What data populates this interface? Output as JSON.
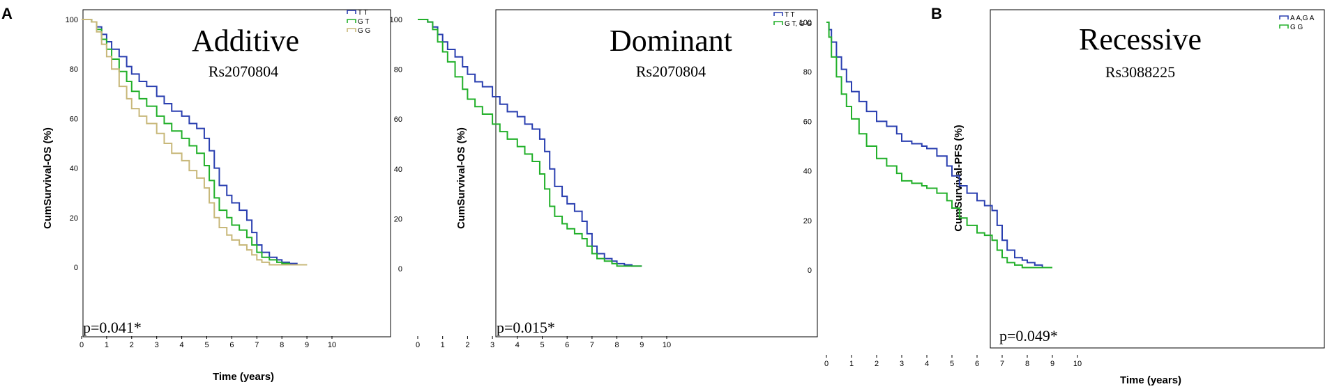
{
  "chart_data": [
    {
      "type": "line",
      "panel_label": "A",
      "title": "Additive",
      "subtitle": "Rs2070804",
      "xlabel": "Time (years)",
      "ylabel": "CumSurvival-OS (%)",
      "annotation": "p=0.041*",
      "xlim": [
        0,
        10
      ],
      "ylim": [
        0,
        100
      ],
      "xticks": [
        "0",
        "1",
        "2",
        "3",
        "4",
        "5",
        "6",
        "7",
        "8",
        "9",
        "10"
      ],
      "yticks": [
        "0",
        "20",
        "40",
        "60",
        "80",
        "100"
      ],
      "legend_position": "top-right",
      "series": [
        {
          "name": "T T",
          "color": "#2a3fb0",
          "x": [
            0,
            0.2,
            0.4,
            0.6,
            0.8,
            1,
            1.2,
            1.5,
            1.8,
            2,
            2.3,
            2.6,
            3,
            3.3,
            3.6,
            4,
            4.3,
            4.6,
            4.9,
            5.1,
            5.3,
            5.5,
            5.8,
            6,
            6.3,
            6.6,
            6.8,
            7,
            7.2,
            7.5,
            7.8,
            8,
            8.3,
            8.6,
            9
          ],
          "y": [
            100,
            100,
            99,
            97,
            94,
            91,
            88,
            85,
            81,
            78,
            75,
            73,
            69,
            66,
            63,
            61,
            58,
            56,
            52,
            47,
            40,
            33,
            29,
            26,
            23,
            19,
            14,
            9,
            6,
            4,
            3,
            2,
            1.5,
            1,
            1
          ]
        },
        {
          "name": "G T",
          "color": "#22b02a",
          "x": [
            0,
            0.2,
            0.4,
            0.6,
            0.8,
            1,
            1.2,
            1.5,
            1.8,
            2,
            2.3,
            2.6,
            3,
            3.3,
            3.6,
            4,
            4.3,
            4.6,
            4.9,
            5.1,
            5.3,
            5.5,
            5.8,
            6,
            6.3,
            6.6,
            6.8,
            7,
            7.2,
            7.5,
            7.8,
            8,
            8.3,
            8.6,
            9
          ],
          "y": [
            100,
            100,
            99,
            96,
            92,
            88,
            84,
            79,
            75,
            71,
            68,
            65,
            61,
            58,
            55,
            52,
            49,
            46,
            41,
            35,
            28,
            23,
            20,
            17,
            15,
            12,
            9,
            6,
            4,
            3,
            2,
            1.5,
            1,
            1,
            1
          ]
        },
        {
          "name": "G G",
          "color": "#c8b87a",
          "x": [
            0,
            0.2,
            0.4,
            0.6,
            0.8,
            1,
            1.2,
            1.5,
            1.8,
            2,
            2.3,
            2.6,
            3,
            3.3,
            3.6,
            4,
            4.3,
            4.6,
            4.9,
            5.1,
            5.3,
            5.5,
            5.8,
            6,
            6.3,
            6.6,
            6.8,
            7,
            7.2,
            7.5,
            7.8,
            8,
            8.3,
            8.6,
            9
          ],
          "y": [
            100,
            100,
            99,
            95,
            90,
            85,
            80,
            73,
            68,
            64,
            61,
            58,
            54,
            50,
            46,
            43,
            39,
            36,
            32,
            26,
            20,
            16,
            13,
            11,
            9,
            7,
            5,
            3,
            2,
            1,
            1,
            1,
            1,
            1,
            1
          ]
        }
      ]
    },
    {
      "type": "line",
      "title": "Dominant",
      "subtitle": "Rs2070804",
      "xlabel": "",
      "ylabel": "CumSurvival-OS (%)",
      "annotation": "p=0.015*",
      "xlim": [
        0,
        10
      ],
      "ylim": [
        0,
        100
      ],
      "xticks": [
        "0",
        "1",
        "2",
        "3",
        "4",
        "5",
        "6",
        "7",
        "8",
        "9",
        "10"
      ],
      "yticks": [
        "0",
        "20",
        "40",
        "60",
        "80",
        "100"
      ],
      "legend_position": "top-right",
      "series": [
        {
          "name": "T T",
          "color": "#2a3fb0",
          "x": [
            0,
            0.2,
            0.4,
            0.6,
            0.8,
            1,
            1.2,
            1.5,
            1.8,
            2,
            2.3,
            2.6,
            3,
            3.3,
            3.6,
            4,
            4.3,
            4.6,
            4.9,
            5.1,
            5.3,
            5.5,
            5.8,
            6,
            6.3,
            6.6,
            6.8,
            7,
            7.2,
            7.5,
            7.8,
            8,
            8.3,
            8.6,
            9
          ],
          "y": [
            100,
            100,
            99,
            97,
            94,
            91,
            88,
            85,
            81,
            78,
            75,
            73,
            69,
            66,
            63,
            61,
            58,
            56,
            52,
            47,
            40,
            33,
            29,
            26,
            23,
            19,
            14,
            9,
            6,
            4,
            3,
            2,
            1.5,
            1,
            1
          ]
        },
        {
          "name": "G T, G G",
          "color": "#22b02a",
          "x": [
            0,
            0.2,
            0.4,
            0.6,
            0.8,
            1,
            1.2,
            1.5,
            1.8,
            2,
            2.3,
            2.6,
            3,
            3.3,
            3.6,
            4,
            4.3,
            4.6,
            4.9,
            5.1,
            5.3,
            5.5,
            5.8,
            6,
            6.3,
            6.6,
            6.8,
            7,
            7.2,
            7.5,
            7.8,
            8,
            8.3,
            8.6,
            9
          ],
          "y": [
            100,
            100,
            99,
            96,
            91,
            87,
            83,
            77,
            72,
            68,
            65,
            62,
            58,
            55,
            52,
            49,
            46,
            43,
            38,
            32,
            25,
            21,
            18,
            16,
            14,
            12,
            9,
            6,
            4,
            3,
            2,
            1,
            1,
            1,
            1
          ]
        }
      ]
    },
    {
      "type": "line",
      "panel_label": "B",
      "title": "Recessive",
      "subtitle": "Rs3088225",
      "xlabel": "Time (years)",
      "ylabel": "CumSurvival-PFS (%)",
      "annotation": "p=0.049*",
      "xlim": [
        0,
        10
      ],
      "ylim": [
        0,
        100
      ],
      "xticks": [
        "0",
        "1",
        "2",
        "3",
        "4",
        "5",
        "6",
        "7",
        "8",
        "9",
        "10"
      ],
      "yticks": [
        "0",
        "20",
        "40",
        "60",
        "80",
        "100"
      ],
      "legend_position": "top-right",
      "series": [
        {
          "name": "A A,G A",
          "color": "#2a3fb0",
          "x": [
            0,
            0.1,
            0.2,
            0.4,
            0.6,
            0.8,
            1,
            1.3,
            1.6,
            2,
            2.4,
            2.8,
            3,
            3.4,
            3.8,
            4,
            4.4,
            4.8,
            5,
            5.3,
            5.6,
            6,
            6.3,
            6.6,
            6.8,
            7,
            7.2,
            7.5,
            7.8,
            8,
            8.3,
            8.6,
            9
          ],
          "y": [
            100,
            97,
            92,
            86,
            81,
            76,
            72,
            68,
            64,
            60,
            58,
            55,
            52,
            51,
            50,
            49,
            46,
            42,
            38,
            34,
            31,
            28,
            26,
            24,
            18,
            12,
            8,
            5,
            4,
            3,
            2,
            1,
            1
          ]
        },
        {
          "name": "G G",
          "color": "#22b02a",
          "x": [
            0,
            0.1,
            0.2,
            0.4,
            0.6,
            0.8,
            1,
            1.3,
            1.6,
            2,
            2.4,
            2.8,
            3,
            3.4,
            3.8,
            4,
            4.4,
            4.8,
            5,
            5.3,
            5.6,
            6,
            6.3,
            6.6,
            6.8,
            7,
            7.2,
            7.5,
            7.8,
            8,
            8.3,
            8.6,
            9
          ],
          "y": [
            100,
            94,
            86,
            78,
            71,
            66,
            61,
            55,
            50,
            45,
            42,
            39,
            36,
            35,
            34,
            33,
            31,
            28,
            25,
            21,
            18,
            15,
            14,
            12,
            8,
            5,
            3,
            2,
            1,
            1,
            1,
            1,
            1
          ]
        }
      ]
    }
  ]
}
